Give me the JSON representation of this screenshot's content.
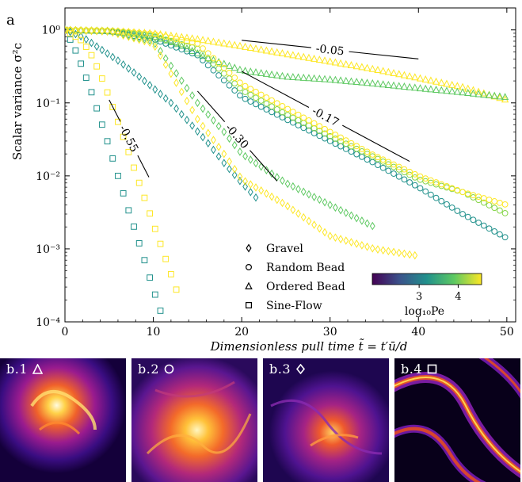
{
  "panel_label": "a",
  "chart_data": {
    "type": "scatter",
    "title": "",
    "xlabel": "Dimensionless pull time t̃ = t′ū/d",
    "ylabel": "Scalar variance σ²c",
    "xlim": [
      0,
      51
    ],
    "ylim": [
      0.0001,
      2
    ],
    "yscale": "log",
    "x_ticks": [
      0,
      10,
      20,
      30,
      40,
      50
    ],
    "y_ticks": [
      {
        "value": 1,
        "label": "10⁰"
      },
      {
        "value": 0.1,
        "label": "10⁻¹"
      },
      {
        "value": 0.01,
        "label": "10⁻²"
      },
      {
        "value": 0.001,
        "label": "10⁻³"
      },
      {
        "value": 0.0001,
        "label": "10⁻⁴"
      }
    ],
    "legend": {
      "placement": "bottom-center",
      "entries": [
        {
          "marker": "diamond",
          "label": "Gravel"
        },
        {
          "marker": "circle",
          "label": "Random Bead"
        },
        {
          "marker": "triangle",
          "label": "Ordered Bead"
        },
        {
          "marker": "square",
          "label": "Sine-Flow"
        }
      ]
    },
    "colorbar": {
      "label": "log₁₀Pe",
      "range": [
        1.8,
        4.6
      ],
      "ticks": [
        3,
        4
      ],
      "colors": [
        "#440154",
        "#3b528b",
        "#21918c",
        "#5ec962",
        "#fde725"
      ]
    },
    "slope_annotations": [
      {
        "label": "-0.05",
        "x": [
          20,
          40
        ],
        "y": [
          0.72,
          0.4
        ]
      },
      {
        "label": "-0.17",
        "x": [
          20,
          39
        ],
        "y": [
          0.27,
          0.0158
        ]
      },
      {
        "label": "-0.30",
        "x": [
          15,
          24
        ],
        "y": [
          0.145,
          0.0085
        ]
      },
      {
        "label": "-0.55",
        "x": [
          5,
          9.5
        ],
        "y": [
          0.11,
          0.0096
        ]
      }
    ],
    "series": [
      {
        "marker": "triangle",
        "color": "#fde725",
        "x": [
          0,
          5,
          10,
          15,
          20,
          25,
          30,
          35,
          40,
          45,
          50
        ],
        "y": [
          1.0,
          0.98,
          0.9,
          0.75,
          0.6,
          0.47,
          0.37,
          0.29,
          0.22,
          0.165,
          0.11
        ]
      },
      {
        "marker": "triangle",
        "color": "#5ec962",
        "x": [
          0,
          5,
          10,
          13,
          16,
          20,
          25,
          30,
          35,
          40,
          45,
          50
        ],
        "y": [
          1.0,
          0.97,
          0.82,
          0.62,
          0.42,
          0.28,
          0.23,
          0.21,
          0.185,
          0.16,
          0.14,
          0.12
        ]
      },
      {
        "marker": "circle",
        "color": "#21918c",
        "x": [
          0,
          5,
          10,
          15,
          20,
          25,
          30,
          35,
          40,
          45,
          50
        ],
        "y": [
          1.0,
          0.95,
          0.75,
          0.45,
          0.12,
          0.06,
          0.03,
          0.015,
          0.007,
          0.003,
          0.0014
        ]
      },
      {
        "marker": "circle",
        "color": "#86d549",
        "x": [
          0,
          5,
          10,
          15,
          20,
          25,
          30,
          35,
          40,
          45,
          50
        ],
        "y": [
          1.0,
          0.97,
          0.82,
          0.55,
          0.15,
          0.07,
          0.035,
          0.018,
          0.009,
          0.006,
          0.003
        ]
      },
      {
        "marker": "circle",
        "color": "#fde725",
        "x": [
          0,
          5,
          10,
          15,
          20,
          25,
          30,
          35,
          40,
          45,
          50
        ],
        "y": [
          1.0,
          0.98,
          0.88,
          0.65,
          0.18,
          0.085,
          0.04,
          0.019,
          0.01,
          0.006,
          0.004
        ]
      },
      {
        "marker": "diamond",
        "color": "#21918c",
        "x": [
          0,
          2,
          4,
          6,
          8,
          10,
          12,
          14,
          16,
          18,
          20,
          22
        ],
        "y": [
          1.0,
          0.8,
          0.55,
          0.38,
          0.25,
          0.16,
          0.1,
          0.055,
          0.03,
          0.015,
          0.008,
          0.0045
        ]
      },
      {
        "marker": "diamond",
        "color": "#5ec962",
        "x": [
          0,
          5,
          10,
          15,
          18,
          20,
          25,
          30,
          35
        ],
        "y": [
          1.0,
          0.95,
          0.7,
          0.1,
          0.04,
          0.02,
          0.008,
          0.004,
          0.002
        ]
      },
      {
        "marker": "diamond",
        "color": "#fde725",
        "x": [
          0,
          5,
          10,
          15,
          18,
          20,
          25,
          30,
          35,
          40
        ],
        "y": [
          1.0,
          0.95,
          0.65,
          0.06,
          0.02,
          0.009,
          0.004,
          0.0015,
          0.001,
          0.0008
        ]
      },
      {
        "marker": "square",
        "color": "#21918c",
        "x": [
          0,
          1,
          2,
          3,
          4,
          5,
          6,
          7,
          8,
          9,
          10,
          11
        ],
        "y": [
          1.0,
          0.6,
          0.3,
          0.14,
          0.06,
          0.025,
          0.01,
          0.004,
          0.0017,
          0.0007,
          0.00028,
          0.00012
        ]
      },
      {
        "marker": "square",
        "color": "#fde725",
        "x": [
          0,
          2,
          3,
          4,
          5,
          6,
          7,
          8,
          9,
          10,
          11,
          12,
          13
        ],
        "y": [
          1.0,
          0.7,
          0.45,
          0.25,
          0.12,
          0.055,
          0.025,
          0.011,
          0.005,
          0.0022,
          0.001,
          0.00045,
          0.0002
        ]
      }
    ]
  },
  "panels": [
    {
      "label": "b.1",
      "marker": "triangle"
    },
    {
      "label": "b.2",
      "marker": "circle"
    },
    {
      "label": "b.3",
      "marker": "diamond"
    },
    {
      "label": "b.4",
      "marker": "square"
    }
  ]
}
